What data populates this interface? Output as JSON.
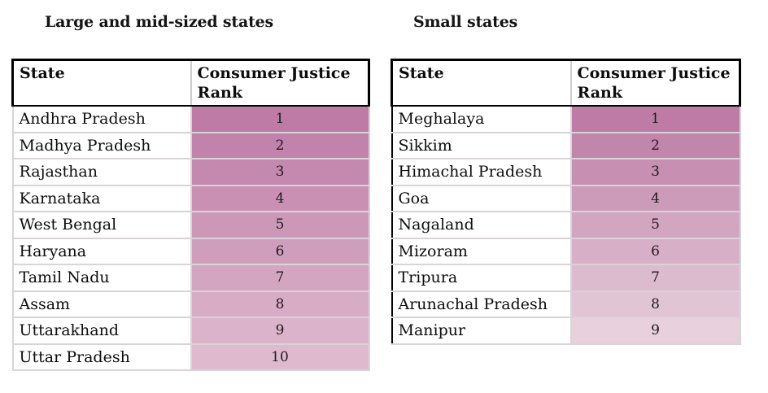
{
  "chart_data": [
    {
      "type": "table",
      "title": "Large and mid-sized states",
      "columns": [
        "State",
        "Consumer Justice Rank"
      ],
      "rows": [
        [
          "Andhra Pradesh",
          1
        ],
        [
          "Madhya Pradesh",
          2
        ],
        [
          "Rajasthan",
          3
        ],
        [
          "Karnataka",
          4
        ],
        [
          "West Bengal",
          5
        ],
        [
          "Haryana",
          6
        ],
        [
          "Tamil Nadu",
          7
        ],
        [
          "Assam",
          8
        ],
        [
          "Uttarakhand",
          9
        ],
        [
          "Uttar Pradesh",
          10
        ]
      ],
      "rank_cell_colors": [
        "#bd7ba6",
        "#c182ab",
        "#c589af",
        "#c990b4",
        "#cd97b8",
        "#d09ebd",
        "#d4a5c1",
        "#d8acc6",
        "#dbb3ca",
        "#dfbace"
      ],
      "layout": "rank column shaded dark-to-light by rank, state column white"
    },
    {
      "type": "table",
      "title": "Small states",
      "columns": [
        "State",
        "Consumer Justice Rank"
      ],
      "rows": [
        [
          "Meghalaya",
          1
        ],
        [
          "Sikkim",
          2
        ],
        [
          "Himachal Pradesh",
          3
        ],
        [
          "Goa",
          4
        ],
        [
          "Nagaland",
          5
        ],
        [
          "Mizoram",
          6
        ],
        [
          "Tripura",
          7
        ],
        [
          "Arunachal Pradesh",
          8
        ],
        [
          "Manipur",
          9
        ]
      ],
      "rank_cell_colors": [
        "#bd7ba6",
        "#c286ad",
        "#c790b3",
        "#cd9bba",
        "#d2a6c1",
        "#d7b0c7",
        "#ddbbce",
        "#e2c5d5",
        "#e8d0dc"
      ],
      "layout": "rank column shaded dark-to-light by rank, state column white"
    }
  ],
  "colors": {
    "rank_scale_darkest": "#bd7ba6",
    "rank_scale_lightest": "#e8d0dc",
    "grid_line": "#d8d4d8",
    "header_border": "#000000",
    "background": "#ffffff"
  }
}
